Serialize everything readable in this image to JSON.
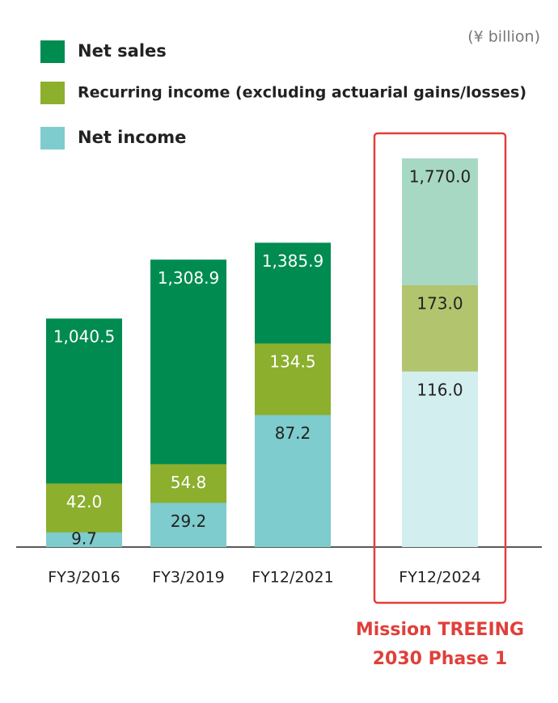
{
  "chart_data": {
    "type": "bar",
    "unit": "(¥ billion)",
    "categories": [
      "FY3/2016",
      "FY3/2019",
      "FY12/2021",
      "FY12/2024"
    ],
    "series": [
      {
        "name": "Net sales",
        "color": "#008c50",
        "colors": [
          "#008c50",
          "#008c50",
          "#008c50",
          "#a7d8c4"
        ],
        "values": [
          1040.5,
          1308.9,
          1385.9,
          1770.0
        ],
        "value_labels": [
          "1,040.5",
          "1,308.9",
          "1,385.9",
          "1,770.0"
        ]
      },
      {
        "name": "Recurring income (excluding actuarial gains/losses)",
        "color": "#8caf2e",
        "colors": [
          "#8caf2e",
          "#8caf2e",
          "#8caf2e",
          "#b3c46e"
        ],
        "values": [
          42.0,
          54.8,
          134.5,
          173.0
        ],
        "value_labels": [
          null,
          "54.8",
          "134.5",
          "173.0"
        ]
      },
      {
        "name": "Net income",
        "color": "#7ecccd",
        "colors": [
          "#7ecccd",
          "#7ecccd",
          "#7ecccd",
          "#d3eeee"
        ],
        "values": [
          9.7,
          29.2,
          87.2,
          116.0
        ],
        "value_labels": [
          null,
          null,
          null,
          "116.0"
        ]
      }
    ],
    "annotation": [
      "Mission TREEING",
      "2030 Phase 1"
    ]
  }
}
